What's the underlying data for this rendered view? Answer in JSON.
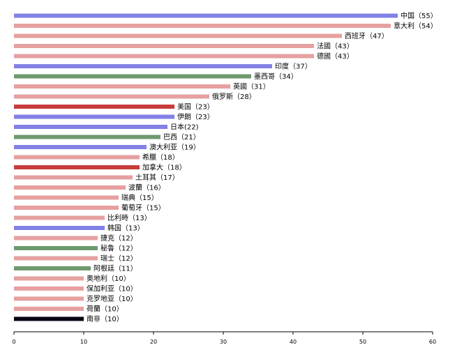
{
  "chart_data": {
    "type": "bar",
    "orientation": "horizontal",
    "title": "",
    "xlabel": "",
    "ylabel": "",
    "xlim": [
      0,
      60
    ],
    "x_ticks": [
      0,
      10,
      20,
      30,
      40,
      50,
      60
    ],
    "grid": false,
    "legend": "none",
    "colors": {
      "blue": "#8181e6",
      "pink": "#e6a0a0",
      "green": "#6e9a6e",
      "red": "#c83c3c",
      "black": "#050514"
    },
    "bars": [
      {
        "label": "中国（55）",
        "value": 55,
        "color": "blue"
      },
      {
        "label": "意大利（54）",
        "value": 54,
        "color": "pink"
      },
      {
        "label": "西班牙（47）",
        "value": 47,
        "color": "pink"
      },
      {
        "label": "法國（43）",
        "value": 43,
        "color": "pink"
      },
      {
        "label": "德國（43）",
        "value": 43,
        "color": "pink"
      },
      {
        "label": "印度（37）",
        "value": 37,
        "color": "blue"
      },
      {
        "label": "墨西哥（34）",
        "value": 34,
        "color": "green"
      },
      {
        "label": "英國（31）",
        "value": 31,
        "color": "pink"
      },
      {
        "label": "俄罗斯（28）",
        "value": 28,
        "color": "pink"
      },
      {
        "label": "美国（23）",
        "value": 23,
        "color": "red"
      },
      {
        "label": "伊朗（23）",
        "value": 23,
        "color": "blue"
      },
      {
        "label": "日本(22)",
        "value": 22,
        "color": "blue"
      },
      {
        "label": "巴西（21）",
        "value": 21,
        "color": "green"
      },
      {
        "label": "澳大利亚（19）",
        "value": 19,
        "color": "blue"
      },
      {
        "label": "希臘（18）",
        "value": 18,
        "color": "pink"
      },
      {
        "label": "加拿大（18）",
        "value": 18,
        "color": "red"
      },
      {
        "label": "土耳其（17）",
        "value": 17,
        "color": "pink"
      },
      {
        "label": "波蘭（16）",
        "value": 16,
        "color": "pink"
      },
      {
        "label": "瑞典（15）",
        "value": 15,
        "color": "pink"
      },
      {
        "label": "葡萄牙（15）",
        "value": 15,
        "color": "pink"
      },
      {
        "label": "比利時（13）",
        "value": 13,
        "color": "pink"
      },
      {
        "label": "韩国（13）",
        "value": 13,
        "color": "blue"
      },
      {
        "label": "捷克（12）",
        "value": 12,
        "color": "pink"
      },
      {
        "label": "秘鲁（12）",
        "value": 12,
        "color": "green"
      },
      {
        "label": "瑞士（12）",
        "value": 12,
        "color": "pink"
      },
      {
        "label": "阿根廷（11）",
        "value": 11,
        "color": "green"
      },
      {
        "label": "奥地利（10）",
        "value": 10,
        "color": "pink"
      },
      {
        "label": "保加利亚（10）",
        "value": 10,
        "color": "pink"
      },
      {
        "label": "克罗地亚（10）",
        "value": 10,
        "color": "pink"
      },
      {
        "label": "荷蘭（10）",
        "value": 10,
        "color": "pink"
      },
      {
        "label": "南非（10）",
        "value": 10,
        "color": "black"
      }
    ]
  }
}
